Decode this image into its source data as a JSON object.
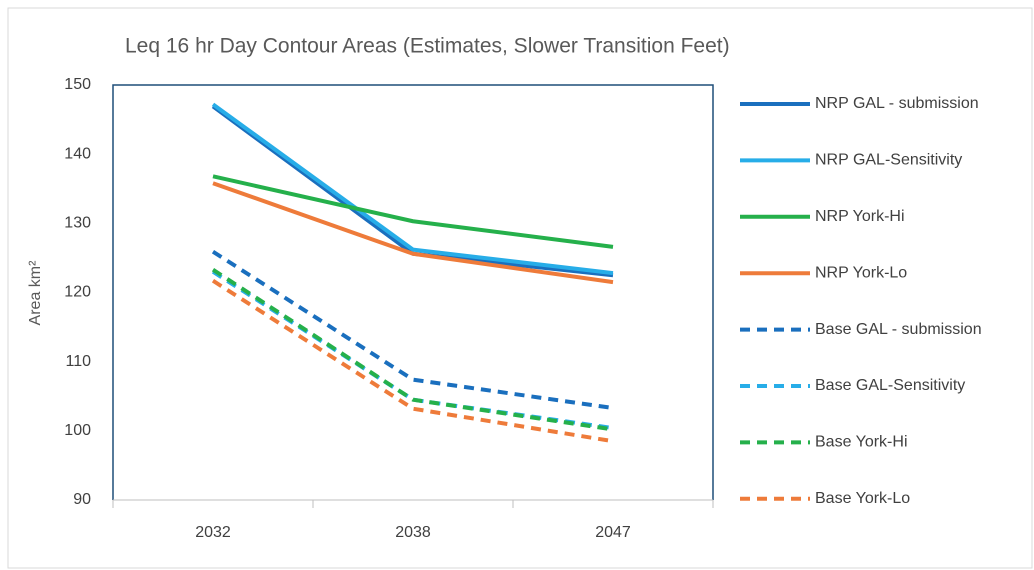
{
  "chart_data": {
    "type": "line",
    "title": "Leq 16 hr Day Contour Areas (Estimates, Slower Transition Feet)",
    "y_label": "Area km²",
    "categories": [
      "2032",
      "2038",
      "2047"
    ],
    "series": [
      {
        "name": "NRP GAL - submission",
        "color": "#1a6fbe",
        "dashed": false,
        "values": [
          146.9,
          125.6,
          122.5
        ]
      },
      {
        "name": "NRP GAL-Sensitivity",
        "color": "#27ade8",
        "dashed": false,
        "values": [
          147.2,
          126.2,
          122.8
        ]
      },
      {
        "name": "NRP York-Hi",
        "color": "#25b04b",
        "dashed": false,
        "values": [
          136.8,
          130.3,
          126.6
        ]
      },
      {
        "name": "NRP York-Lo",
        "color": "#ee7b3a",
        "dashed": false,
        "values": [
          135.8,
          125.6,
          121.5
        ]
      },
      {
        "name": "Base GAL - submission",
        "color": "#1a6fbe",
        "dashed": true,
        "values": [
          125.9,
          107.4,
          103.3
        ]
      },
      {
        "name": "Base GAL-Sensitivity",
        "color": "#27ade8",
        "dashed": true,
        "values": [
          123.0,
          104.5,
          100.4
        ]
      },
      {
        "name": "Base York-Hi",
        "color": "#25b04b",
        "dashed": true,
        "values": [
          123.3,
          104.5,
          100.2
        ]
      },
      {
        "name": "Base York-Lo",
        "color": "#ee7b3a",
        "dashed": true,
        "values": [
          121.7,
          103.2,
          98.5
        ]
      }
    ],
    "ylim": [
      90,
      150
    ],
    "yticks": [
      90,
      100,
      110,
      120,
      130,
      140,
      150
    ],
    "grid": false,
    "legend": "right"
  }
}
